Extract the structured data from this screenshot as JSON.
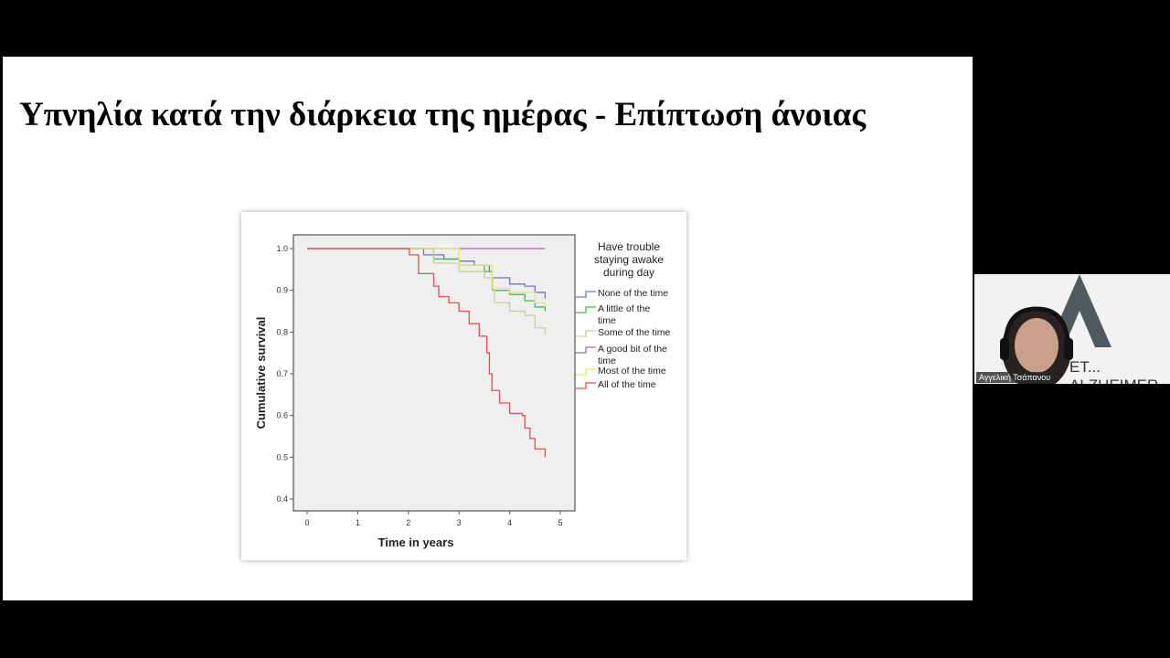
{
  "slide": {
    "title": "Υπνηλία κατά την διάρκεια της ημέρας - Επίπτωση άνοιας"
  },
  "video_tile": {
    "participant_name": "Αγγελική Τσάπανου",
    "background_logo_text": "ET... ALZHEIMER"
  },
  "chart_data": {
    "type": "line",
    "step": true,
    "xlabel": "Time in years",
    "ylabel": "Cumulative survival",
    "xlim": [
      0,
      5
    ],
    "ylim": [
      0.4,
      1.0
    ],
    "xticks": [
      "0",
      "1",
      "2",
      "3",
      "4",
      "5"
    ],
    "yticks": [
      "0.4",
      "0.5",
      "0.6",
      "0.7",
      "0.8",
      "0.9",
      "1.0"
    ],
    "grid": false,
    "legend_title": "Have trouble staying awake during day",
    "legend_position": "right",
    "series": [
      {
        "name": "None of the time",
        "color": "#6b78c0",
        "points": [
          [
            0,
            1
          ],
          [
            2,
            1
          ],
          [
            2.3,
            0.985
          ],
          [
            2.7,
            0.975
          ],
          [
            3,
            0.97
          ],
          [
            3.3,
            0.96
          ],
          [
            3.6,
            0.945
          ],
          [
            3.65,
            0.93
          ],
          [
            4,
            0.915
          ],
          [
            4.3,
            0.91
          ],
          [
            4.5,
            0.895
          ],
          [
            4.7,
            0.88
          ]
        ]
      },
      {
        "name": "A little of the time",
        "color": "#4cb84c",
        "points": [
          [
            0,
            1
          ],
          [
            2,
            1
          ],
          [
            2.5,
            0.975
          ],
          [
            3,
            0.96
          ],
          [
            3.5,
            0.945
          ],
          [
            3.65,
            0.93
          ],
          [
            3.67,
            0.9
          ],
          [
            4,
            0.89
          ],
          [
            4.3,
            0.875
          ],
          [
            4.5,
            0.86
          ],
          [
            4.7,
            0.85
          ]
        ]
      },
      {
        "name": "Some of the time",
        "color": "#c9cca2",
        "points": [
          [
            0,
            1
          ],
          [
            2,
            1
          ],
          [
            2.5,
            0.965
          ],
          [
            3,
            0.945
          ],
          [
            3.5,
            0.93
          ],
          [
            3.65,
            0.9
          ],
          [
            3.7,
            0.87
          ],
          [
            4,
            0.85
          ],
          [
            4.3,
            0.84
          ],
          [
            4.5,
            0.81
          ],
          [
            4.7,
            0.795
          ]
        ]
      },
      {
        "name": "A good bit of the time",
        "color": "#9a6fa8",
        "points": [
          [
            0,
            1
          ],
          [
            4.7,
            1
          ]
        ]
      },
      {
        "name": "Most of the time",
        "color": "#e8e66e",
        "points": [
          [
            0,
            1
          ],
          [
            2,
            1
          ],
          [
            3,
            0.96
          ],
          [
            3.65,
            0.93
          ],
          [
            3.67,
            0.905
          ],
          [
            4,
            0.895
          ],
          [
            4.5,
            0.87
          ],
          [
            4.7,
            0.86
          ]
        ]
      },
      {
        "name": "All of the time",
        "color": "#e05252",
        "points": [
          [
            0,
            1
          ],
          [
            2,
            1
          ],
          [
            2.02,
            0.985
          ],
          [
            2.2,
            0.94
          ],
          [
            2.5,
            0.91
          ],
          [
            2.6,
            0.885
          ],
          [
            2.8,
            0.87
          ],
          [
            3,
            0.85
          ],
          [
            3.2,
            0.82
          ],
          [
            3.4,
            0.79
          ],
          [
            3.55,
            0.75
          ],
          [
            3.6,
            0.7
          ],
          [
            3.65,
            0.66
          ],
          [
            3.8,
            0.63
          ],
          [
            4,
            0.605
          ],
          [
            4.25,
            0.6
          ],
          [
            4.3,
            0.57
          ],
          [
            4.4,
            0.545
          ],
          [
            4.5,
            0.52
          ],
          [
            4.7,
            0.52
          ],
          [
            4.7,
            0.5
          ]
        ]
      }
    ]
  }
}
